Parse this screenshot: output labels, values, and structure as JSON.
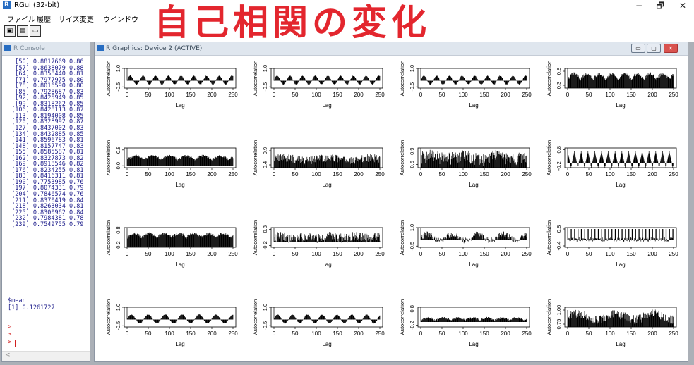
{
  "app": {
    "title": "RGui (32-bit)",
    "icon": "r-logo-icon"
  },
  "menu": [
    "ファイル",
    "履歴",
    "サイズ変更",
    "ウインドウ"
  ],
  "window_controls": {
    "minimize": "−",
    "restore": "🗗",
    "close": "✕"
  },
  "toolbar": [
    {
      "name": "copy-plot-icon"
    },
    {
      "name": "print-icon"
    },
    {
      "name": "window-icon"
    }
  ],
  "banner": "自己相関の変化",
  "console": {
    "title": "R Console",
    "lines": [
      "  [50] 0.8817669 0.86",
      "  [57] 0.8638079 0.88",
      "  [64] 0.8358440 0.81",
      "  [71] 0.7977975 0.80",
      "  [78] 0.8016590 0.80",
      "  [85] 0.7928687 0.83",
      "  [92] 0.8425949 0.85",
      "  [99] 0.8318262 0.85",
      " [106] 0.8428113 0.87",
      " [113] 0.8194008 0.85",
      " [120] 0.8328992 0.87",
      " [127] 0.8437002 0.83",
      " [134] 0.8432885 0.85",
      " [141] 0.8596783 0.81",
      " [148] 0.8157747 0.83",
      " [155] 0.8585587 0.81",
      " [162] 0.8327873 0.82",
      " [169] 0.8918546 0.82",
      " [176] 0.8234255 0.81",
      " [183] 0.8416311 0.81",
      " [190] 0.7753985 0.76",
      " [197] 0.8074331 0.79",
      " [204] 0.7846574 0.76",
      " [211] 0.8370419 0.84",
      " [218] 0.8263034 0.81",
      " [225] 0.8300962 0.84",
      " [232] 0.7984381 0.78",
      " [239] 0.7549755 0.79"
    ],
    "mean_label": "$mean",
    "mean_value": "[1] 0.1261727",
    "prompt": ">",
    "scroll_left": "<"
  },
  "graphics": {
    "title": "R Graphics: Device 2 (ACTIVE)",
    "buttons": [
      "▭",
      "▢",
      "✕"
    ]
  },
  "chart_data": {
    "type": "grid",
    "xlabel": "Lag",
    "ylabel": "Autocorrelation",
    "xticks": [
      0,
      50,
      100,
      150,
      200,
      250
    ],
    "xlim": [
      0,
      250
    ],
    "rows": 4,
    "cols": 4,
    "panels": [
      {
        "row": 0,
        "col": 0,
        "yticks": [
          "-0.5",
          "1.0"
        ],
        "ylim": [
          -0.6,
          1.0
        ],
        "pattern": "wave",
        "period": 30,
        "amp": 0.35,
        "base": 0.05
      },
      {
        "row": 0,
        "col": 1,
        "yticks": [
          "-0.5",
          "1.0"
        ],
        "ylim": [
          -0.6,
          1.0
        ],
        "pattern": "wave",
        "period": 30,
        "amp": 0.35,
        "base": 0.05
      },
      {
        "row": 0,
        "col": 2,
        "yticks": [
          "-0.5",
          "1.0"
        ],
        "ylim": [
          -0.6,
          1.0
        ],
        "pattern": "wave",
        "period": 30,
        "amp": 0.35,
        "base": 0.05
      },
      {
        "row": 0,
        "col": 3,
        "yticks": [
          "0.3",
          "0.8"
        ],
        "ylim": [
          0.2,
          0.9
        ],
        "pattern": "hump",
        "period": 60,
        "amp": 0.2,
        "base": 0.5
      },
      {
        "row": 1,
        "col": 0,
        "yticks": [
          "0.0",
          "0.8"
        ],
        "ylim": [
          -0.1,
          0.9
        ],
        "pattern": "hump",
        "period": 80,
        "amp": 0.2,
        "base": 0.3
      },
      {
        "row": 1,
        "col": 1,
        "yticks": [
          "0.4",
          "0.9"
        ],
        "ylim": [
          0.3,
          1.0
        ],
        "pattern": "noise",
        "period": 100,
        "amp": 0.15,
        "base": 0.6
      },
      {
        "row": 1,
        "col": 2,
        "yticks": [
          "0.5",
          "0.9"
        ],
        "ylim": [
          0.4,
          1.0
        ],
        "pattern": "noise",
        "period": 80,
        "amp": 0.2,
        "base": 0.7
      },
      {
        "row": 1,
        "col": 3,
        "yticks": [
          "-0.2",
          "0.8"
        ],
        "ylim": [
          -0.3,
          0.9
        ],
        "pattern": "tri",
        "period": 16,
        "amp": 0.5,
        "base": 0.2
      },
      {
        "row": 2,
        "col": 0,
        "yticks": [
          "0.2",
          "0.8"
        ],
        "ylim": [
          0.1,
          0.9
        ],
        "pattern": "hump",
        "period": 70,
        "amp": 0.15,
        "base": 0.5
      },
      {
        "row": 2,
        "col": 1,
        "yticks": [
          "-0.2",
          "0.8"
        ],
        "ylim": [
          -0.3,
          0.9
        ],
        "pattern": "noise",
        "period": 60,
        "amp": 0.3,
        "base": 0.3
      },
      {
        "row": 2,
        "col": 2,
        "yticks": [
          "-0.5",
          "1.0"
        ],
        "ylim": [
          -0.6,
          1.0
        ],
        "pattern": "spiky",
        "period": 60,
        "amp": 0.4,
        "base": 0.2
      },
      {
        "row": 2,
        "col": 3,
        "yticks": [
          "-0.4",
          "0.8"
        ],
        "ylim": [
          -0.5,
          0.9
        ],
        "pattern": "comb",
        "period": 8,
        "amp": 0.6,
        "base": 0.2
      },
      {
        "row": 3,
        "col": 0,
        "yticks": [
          "-0.5",
          "1.0"
        ],
        "ylim": [
          -0.6,
          1.0
        ],
        "pattern": "wave",
        "period": 40,
        "amp": 0.35,
        "base": 0.05
      },
      {
        "row": 3,
        "col": 1,
        "yticks": [
          "-0.5",
          "1.0"
        ],
        "ylim": [
          -0.6,
          1.0
        ],
        "pattern": "wave",
        "period": 35,
        "amp": 0.35,
        "base": 0.05
      },
      {
        "row": 3,
        "col": 2,
        "yticks": [
          "-0.2",
          "0.8"
        ],
        "ylim": [
          -0.3,
          0.9
        ],
        "pattern": "hump",
        "period": 70,
        "amp": 0.15,
        "base": 0.1
      },
      {
        "row": 3,
        "col": 3,
        "yticks": [
          "0.75",
          "1.00"
        ],
        "ylim": [
          0.7,
          1.05
        ],
        "pattern": "noise",
        "period": 90,
        "amp": 0.08,
        "base": 0.88
      }
    ]
  }
}
